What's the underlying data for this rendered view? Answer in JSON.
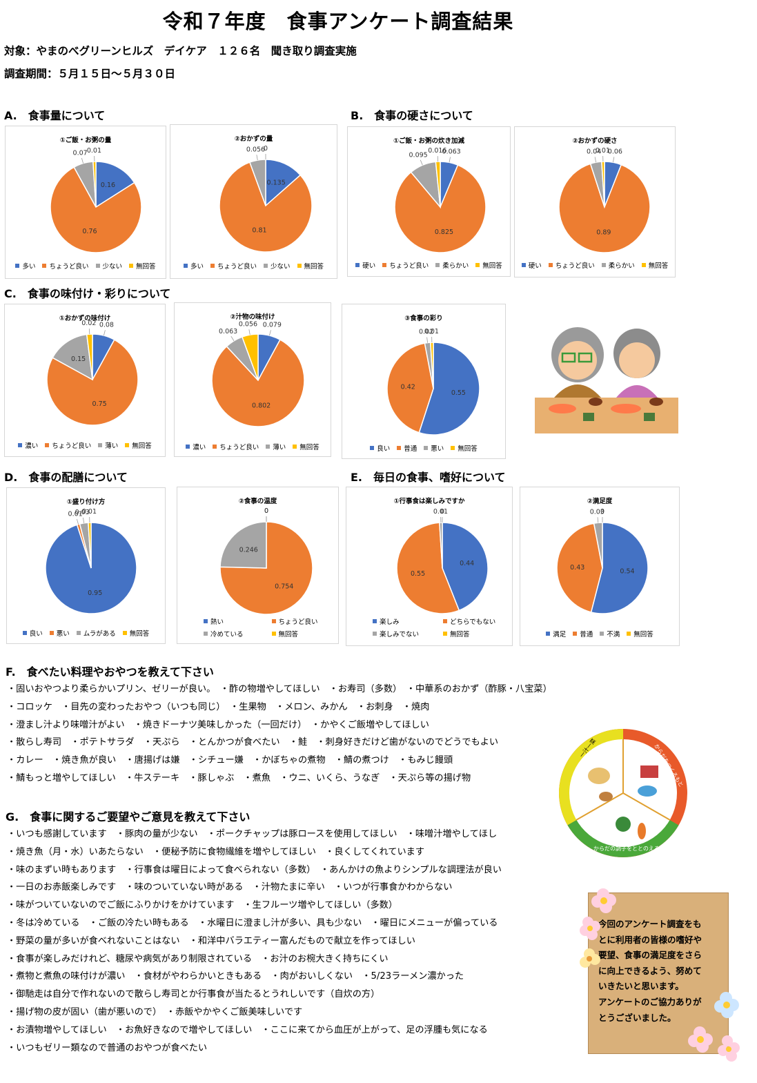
{
  "title": "令和７年度　食事アンケート調査結果",
  "meta": {
    "target": "対象：やまのべグリーンヒルズ　デイケア　１２６名　聞き取り調査実施",
    "period": "調査期間：５月１５日〜５月３０日"
  },
  "sections": {
    "a": "A.　食事量について",
    "b": "B.　食事の硬さについて",
    "c": "C.　食事の味付け・彩りについて",
    "d": "D.　食事の配膳について",
    "e": "E.　毎日の食事、嗜好について",
    "f": "F.　食べたい料理やおやつを教えて下さい",
    "g": "G.　食事に関するご要望やご意見を教えて下さい"
  },
  "colors": {
    "blue": "#4472C4",
    "orange": "#ED7D31",
    "gray": "#A5A5A5",
    "yellow": "#FFC000"
  },
  "chart_data": [
    {
      "type": "pie",
      "title": "①ご飯・お粥の量",
      "categories": [
        "多い",
        "ちょうど良い",
        "少ない",
        "無回答"
      ],
      "values": [
        0.16,
        0.76,
        0.07,
        0.01
      ],
      "labels": [
        "0.16",
        "0.76",
        "0.07",
        "0.01"
      ]
    },
    {
      "type": "pie",
      "title": "②おかずの量",
      "categories": [
        "多い",
        "ちょうど良い",
        "少ない",
        "無回答"
      ],
      "values": [
        0.135,
        0.81,
        0.056,
        0
      ],
      "labels": [
        "0.135",
        "0.81",
        "0.056",
        "0"
      ]
    },
    {
      "type": "pie",
      "title": "①ご飯・お粥の炊き加減",
      "categories": [
        "硬い",
        "ちょうど良い",
        "柔らかい",
        "無回答"
      ],
      "values": [
        0.063,
        0.825,
        0.095,
        0.016
      ],
      "labels": [
        "0.063",
        "0.825",
        "0.095",
        "0.016"
      ]
    },
    {
      "type": "pie",
      "title": "②おかずの硬さ",
      "categories": [
        "硬い",
        "ちょうど良い",
        "柔らかい",
        "無回答"
      ],
      "values": [
        0.06,
        0.89,
        0.04,
        0.01
      ],
      "labels": [
        "0.06",
        "0.89",
        "0.04",
        "0.01"
      ]
    },
    {
      "type": "pie",
      "title": "①おかずの味付け",
      "categories": [
        "濃い",
        "ちょうど良い",
        "薄い",
        "無回答"
      ],
      "values": [
        0.08,
        0.75,
        0.15,
        0.02
      ],
      "labels": [
        "0.08",
        "0.75",
        "0.15",
        "0.02"
      ]
    },
    {
      "type": "pie",
      "title": "②汁物の味付け",
      "categories": [
        "濃い",
        "ちょうど良い",
        "薄い",
        "無回答"
      ],
      "values": [
        0.079,
        0.802,
        0.063,
        0.056
      ],
      "labels": [
        "0.079",
        "0.802",
        "0.063",
        "0.056"
      ]
    },
    {
      "type": "pie",
      "title": "③食事の彩り",
      "categories": [
        "良い",
        "普通",
        "悪い",
        "無回答"
      ],
      "values": [
        0.55,
        0.42,
        0.02,
        0.01
      ],
      "labels": [
        "0.55",
        "0.42",
        "0.02",
        "0.01"
      ]
    },
    {
      "type": "pie",
      "title": "①盛り付け方",
      "categories": [
        "良い",
        "悪い",
        "ムラがある",
        "無回答"
      ],
      "values": [
        0.95,
        0.01,
        0.03,
        0.01
      ],
      "labels": [
        "0.95",
        "0.01",
        "0.03",
        "0.01"
      ]
    },
    {
      "type": "pie",
      "title": "②食事の温度",
      "categories": [
        "熱い",
        "ちょうど良い",
        "冷めている",
        "無回答"
      ],
      "values": [
        0,
        0.754,
        0.246,
        0
      ],
      "labels": [
        "0",
        "0.754",
        "0.246",
        "0"
      ]
    },
    {
      "type": "pie",
      "title": "①行事食は楽しみですか",
      "categories": [
        "楽しみ",
        "どちらでもない",
        "楽しみでない",
        "無回答"
      ],
      "values": [
        0.44,
        0.55,
        0.01,
        0
      ],
      "labels": [
        "0.44",
        "0.55",
        "0.01",
        "0"
      ]
    },
    {
      "type": "pie",
      "title": "②満足度",
      "categories": [
        "満足",
        "普通",
        "不満",
        "無回答"
      ],
      "values": [
        0.54,
        0.43,
        0.03,
        0
      ],
      "labels": [
        "0.54",
        "0.43",
        "0.03",
        "0"
      ]
    }
  ],
  "f_items": [
    "・固いおやつより柔らかいプリン、ゼリーが良い。　・酢の物増やしてほしい　・お寿司（多数）　・中華系のおかず（酢豚・八宝菜）",
    "・コロッケ　・目先の変わったおやつ（いつも同じ）　・生果物　・メロン、みかん　・お刺身　・焼肉",
    "・澄まし汁より味噌汁がよい　・焼きドーナツ美味しかった（一回だけ）　・かやくご飯増やしてほしい",
    "・散らし寿司　・ポテトサラダ　・天ぷら　・とんかつが食べたい　・鮭　・刺身好きだけど歯がないのでどうでもよい",
    "・カレー　・焼き魚が良い　・唐揚げは嫌　・シチュー嫌　・かぼちゃの煮物　・鯖の煮つけ　・もみじ饅頭",
    "・鯖もっと増やしてほしい　・牛ステーキ　・豚しゃぶ　・煮魚　・ウニ、いくら、うなぎ　・天ぷら等の揚げ物"
  ],
  "g_items": [
    "・いつも感謝しています　・豚肉の量が少ない　・ポークチャップは豚ロースを使用してほしい　・味噌汁増やしてほし",
    "・焼き魚（月・水）いあたらない　・便秘予防に食物繊維を増やしてほしい　・良くしてくれています",
    "・味のまずい時もあります　・行事食は曜日によって食べられない（多数）　・あんかけの魚よりシンプルな調理法が良い",
    "・一日のお赤飯楽しみです　・味のついていない時がある　・汁物たまに辛い　・いつが行事食かわからない",
    "・味がついていないのでご飯にふりかけをかけています　・生フルーツ増やしてほしい（多数）",
    "・冬は冷めている　・ご飯の冷たい時もある　・水曜日に澄まし汁が多い、具も少ない　・曜日にメニューが偏っている",
    "・野菜の量が多いが食べれないことはない　・和洋中バラエティー富んだもので献立を作ってほしい",
    "・食事が楽しみだけれど、糖尿や病気があり制限されている　・お汁のお椀大きく持ちにくい",
    "・煮物と煮魚の味付けが濃い　・食材がやわらかいときもある　・肉がおいしくない　・5/23ラーメン濃かった",
    "・御馳走は自分で作れないので散らし寿司とか行事食が当たるとうれしいです（自炊の方）",
    "・揚げ物の皮が固い（歯が悪いので）　・赤飯やかやくご飯美味しいです",
    "・お漬物増やしてほしい　・お魚好きなので増やしてほしい　・ここに来てから血圧が上がって、足の浮腫も気になる",
    "・いつもゼリー類なので普通のおやつが食べたい"
  ],
  "plate": {
    "left": "一汁一菜",
    "right": "からだをつくるもと",
    "bottom": "からだの調子をととのえる"
  },
  "note": "今回のアンケート調査をも\nとに利用者の皆様の嗜好や\n要望、食事の満足度をさら\nに向上できるよう、努めて\nいきたいと思います。\nアンケートのご協力ありが\nとうございました。"
}
